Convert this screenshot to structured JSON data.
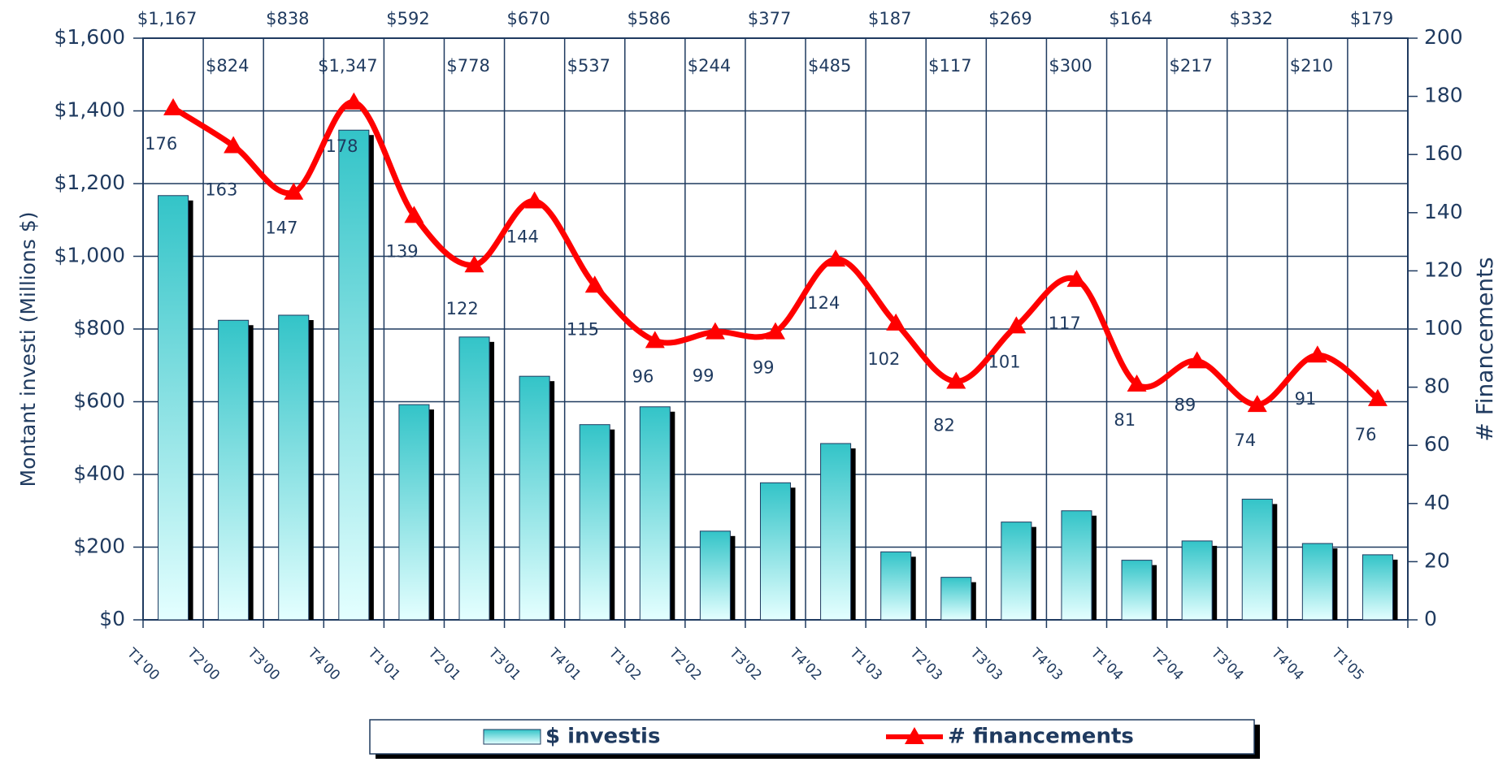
{
  "chart_data": {
    "type": "combo",
    "ylabel": "Montant investi (Millions $)",
    "y2label": "# Financements",
    "categories": [
      "T1'00",
      "T2'00",
      "T3'00",
      "T4'00",
      "T1'01",
      "T2'01",
      "T3'01",
      "T4'01",
      "T1'02",
      "T2'02",
      "T3'02",
      "T4'02",
      "T1'03",
      "T2'03",
      "T3'03",
      "T4'03",
      "T1'04",
      "T2'04",
      "T3'04",
      "T4'04",
      "T1'05"
    ],
    "series": [
      {
        "name": "$ investis",
        "type": "bar",
        "color": "#33c4c8",
        "values": [
          1167,
          824,
          838,
          1347,
          592,
          778,
          670,
          537,
          586,
          244,
          377,
          485,
          187,
          117,
          269,
          300,
          164,
          217,
          332,
          210,
          179
        ],
        "value_labels": [
          "$1,167",
          "$824",
          "$838",
          "$1,347",
          "$592",
          "$778",
          "$670",
          "$537",
          "$586",
          "$244",
          "$377",
          "$485",
          "$187",
          "$117",
          "$269",
          "$300",
          "$164",
          "$217",
          "$332",
          "$210",
          "$179"
        ]
      },
      {
        "name": "# financements",
        "type": "line",
        "axis": "y2",
        "color": "#ff0000",
        "values": [
          176,
          163,
          147,
          178,
          139,
          122,
          144,
          115,
          96,
          99,
          99,
          124,
          102,
          82,
          101,
          117,
          81,
          89,
          74,
          91,
          76
        ]
      }
    ],
    "ylim": [
      0,
      1600
    ],
    "yticks": [
      {
        "value": 0,
        "label": "$0"
      },
      {
        "value": 200,
        "label": "$200"
      },
      {
        "value": 400,
        "label": "$400"
      },
      {
        "value": 600,
        "label": "$600"
      },
      {
        "value": 800,
        "label": "$800"
      },
      {
        "value": 1000,
        "label": "$1,000"
      },
      {
        "value": 1200,
        "label": "$1,200"
      },
      {
        "value": 1400,
        "label": "$1,400"
      },
      {
        "value": 1600,
        "label": "$1,600"
      }
    ],
    "y2lim": [
      0,
      200
    ],
    "y2ticks": [
      0,
      20,
      40,
      60,
      80,
      100,
      120,
      140,
      160,
      180,
      200
    ],
    "grid": true,
    "legend": "bottom"
  }
}
